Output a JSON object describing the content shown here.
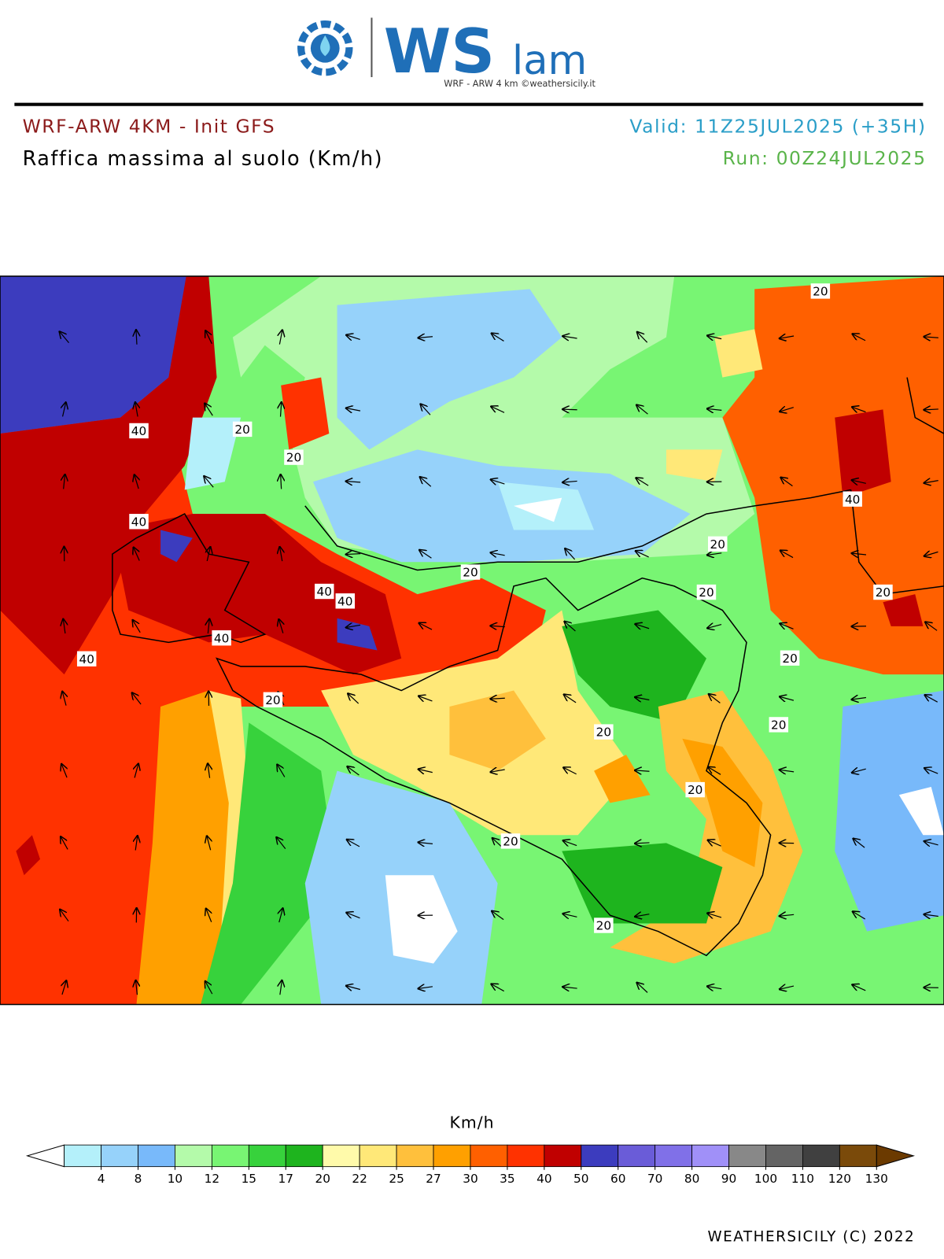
{
  "header": {
    "logo_text": "WS",
    "logo_suffix": "lam",
    "logo_caption": "WRF - ARW 4 km ©weathersicily.it",
    "model": "WRF-ARW 4KM - Init GFS",
    "title": "Raffica massima al suolo (Km/h)",
    "valid": "Valid: 11Z25JUL2025 (+35H)",
    "run": "Run: 00Z24JUL2025"
  },
  "map": {
    "contour_labels": [
      40,
      20,
      20,
      40,
      40,
      40,
      40,
      40,
      20,
      20,
      20,
      40,
      20,
      20,
      20,
      20,
      20,
      20,
      20,
      20,
      20
    ]
  },
  "legend": {
    "unit": "Km/h",
    "below_color": "#ffffff",
    "above_color": "#6b3a00",
    "colors": [
      "#b4f0fa",
      "#96d2fa",
      "#78b9fa",
      "#b4faaa",
      "#78f573",
      "#37d23c",
      "#1eb41e",
      "#fffaaa",
      "#ffe878",
      "#ffc03c",
      "#ffa000",
      "#ff6000",
      "#ff3200",
      "#c00000",
      "#3c3cbe",
      "#6a5cd8",
      "#8070e8",
      "#a090f8",
      "#888888",
      "#646464",
      "#404040",
      "#7a4a0a"
    ],
    "ticks": [
      4,
      8,
      10,
      12,
      15,
      17,
      20,
      22,
      25,
      27,
      30,
      35,
      40,
      50,
      60,
      70,
      80,
      90,
      100,
      110,
      120,
      130
    ]
  },
  "footer": "WEATHERSICILY (C) 2022"
}
